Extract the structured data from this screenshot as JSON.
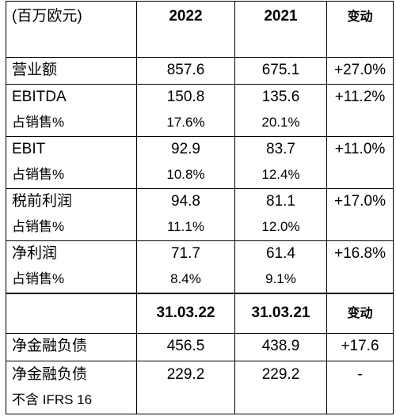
{
  "header": {
    "unit": "(百万欧元)",
    "year_current": "2022",
    "year_prior": "2021",
    "change": "变动"
  },
  "rows": [
    {
      "label": "营业额",
      "current": "857.6",
      "prior": "675.1",
      "change": "+27.0%"
    },
    {
      "label": "EBITDA",
      "current": "150.8",
      "prior": "135.6",
      "change": "+11.2%",
      "sub_label": "占销售%",
      "sub_current": "17.6%",
      "sub_prior": "20.1%"
    },
    {
      "label": "EBIT",
      "current": "92.9",
      "prior": "83.7",
      "change": "+11.0%",
      "sub_label": "占销售%",
      "sub_current": "10.8%",
      "sub_prior": "12.4%"
    },
    {
      "label": "税前利润",
      "current": "94.8",
      "prior": "81.1",
      "change": "+17.0%",
      "sub_label": "占销售%",
      "sub_current": "11.1%",
      "sub_prior": "12.0%"
    },
    {
      "label": "净利润",
      "current": "71.7",
      "prior": "61.4",
      "change": "+16.8%",
      "sub_label": "占销售%",
      "sub_current": "8.4%",
      "sub_prior": "9.1%"
    }
  ],
  "header2": {
    "date_current": "31.03.22",
    "date_prior": "31.03.21",
    "change": "变动"
  },
  "rows2": [
    {
      "label": "净金融负债",
      "current": "456.5",
      "prior": "438.9",
      "change": "+17.6"
    },
    {
      "label": "净金融负债",
      "label_line2": "不含  IFRS 16",
      "current": "229.2",
      "prior": "229.2",
      "change": "-"
    }
  ]
}
